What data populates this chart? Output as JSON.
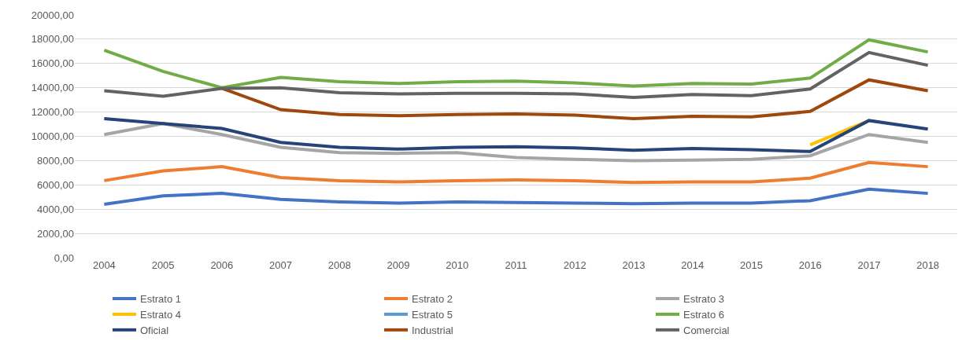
{
  "chart_data": {
    "type": "line",
    "categories": [
      "2004",
      "2005",
      "2006",
      "2007",
      "2008",
      "2009",
      "2010",
      "2011",
      "2012",
      "2013",
      "2014",
      "2015",
      "2016",
      "2017",
      "2018"
    ],
    "series": [
      {
        "name": "Estrato 1",
        "color": "#4472c4",
        "values": [
          4400,
          5100,
          5300,
          4800,
          4600,
          4500,
          4600,
          4550,
          4500,
          4450,
          4500,
          4500,
          4700,
          5650,
          5300
        ]
      },
      {
        "name": "Estrato 2",
        "color": "#ed7d31",
        "values": [
          6350,
          7150,
          7500,
          6600,
          6350,
          6250,
          6350,
          6400,
          6350,
          6200,
          6250,
          6250,
          6550,
          7850,
          7500
        ]
      },
      {
        "name": "Estrato 3",
        "color": "#a5a5a5",
        "values": [
          10150,
          11050,
          10150,
          9100,
          8650,
          8600,
          8650,
          8250,
          8100,
          8000,
          8050,
          8100,
          8400,
          10150,
          9500
        ]
      },
      {
        "name": "Estrato 4",
        "color": "#ffc000",
        "values": [
          null,
          null,
          null,
          null,
          null,
          null,
          null,
          null,
          null,
          null,
          null,
          null,
          9300,
          11300,
          null
        ]
      },
      {
        "name": "Estrato 5",
        "color": "#5b9bd5",
        "values": [
          null,
          null,
          null,
          null,
          null,
          null,
          null,
          null,
          null,
          null,
          null,
          null,
          null,
          null,
          null
        ]
      },
      {
        "name": "Estrato 6",
        "color": "#70ad47",
        "values": [
          17100,
          15350,
          14000,
          14850,
          14500,
          14350,
          14500,
          14550,
          14400,
          14150,
          14350,
          14300,
          14800,
          17950,
          16950
        ]
      },
      {
        "name": "Oficial",
        "color": "#264478",
        "values": [
          11450,
          11050,
          10650,
          9500,
          9100,
          8950,
          9100,
          9150,
          9050,
          8850,
          9000,
          8900,
          8750,
          11300,
          10600
        ]
      },
      {
        "name": "Industrial",
        "color": "#9e480e",
        "values": [
          null,
          null,
          13950,
          12200,
          11800,
          11700,
          11800,
          11850,
          11750,
          11450,
          11650,
          11600,
          12050,
          14650,
          13750
        ]
      },
      {
        "name": "Comercial",
        "color": "#636363",
        "values": [
          13750,
          13300,
          13950,
          14000,
          13600,
          13500,
          13550,
          13550,
          13500,
          13200,
          13450,
          13350,
          13900,
          16900,
          15850
        ]
      }
    ],
    "ylim": [
      0,
      20000
    ],
    "yticks": [
      {
        "value": 0,
        "label": "0,00"
      },
      {
        "value": 2000,
        "label": "2000,00"
      },
      {
        "value": 4000,
        "label": "4000,00"
      },
      {
        "value": 6000,
        "label": "6000,00"
      },
      {
        "value": 8000,
        "label": "8000,00"
      },
      {
        "value": 10000,
        "label": "10000,00"
      },
      {
        "value": 12000,
        "label": "12000,00"
      },
      {
        "value": 14000,
        "label": "14000,00"
      },
      {
        "value": 16000,
        "label": "16000,00"
      },
      {
        "value": 18000,
        "label": "18000,00"
      },
      {
        "value": 20000,
        "label": "20000,00"
      }
    ],
    "grid": "y",
    "legend": "bottom",
    "marker": "none",
    "line_style": "solid"
  }
}
